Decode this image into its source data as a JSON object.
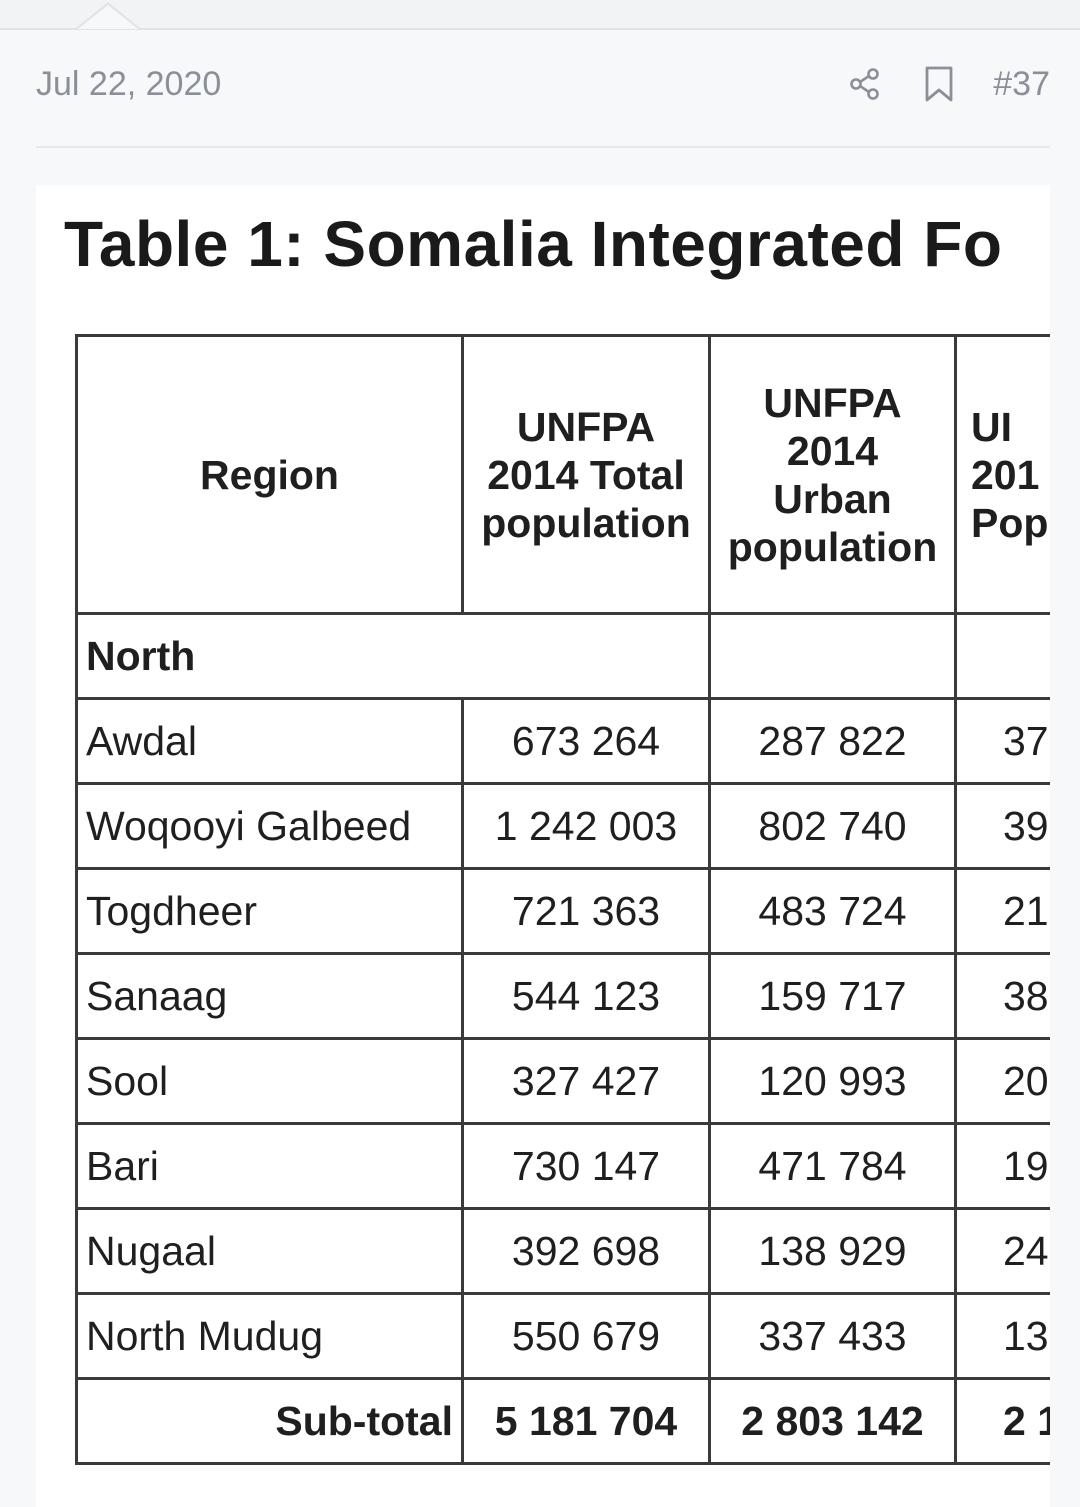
{
  "post": {
    "date": "Jul 22, 2020",
    "number": "#37"
  },
  "icons": {
    "share": "share-icon",
    "bookmark": "bookmark-icon"
  },
  "table": {
    "title": "Table 1: Somalia Integrated Fo",
    "headers": {
      "region": "Region",
      "total_line1": "UNFPA",
      "total_line2": "2014 Total",
      "total_line3": "population",
      "urban_line1": "UNFPA",
      "urban_line2": "2014",
      "urban_line3": "Urban",
      "urban_line4": "population",
      "col4_line1": "UI",
      "col4_line2": "201",
      "col4_line3": "Pop"
    },
    "section": "North",
    "rows": [
      {
        "region": "Awdal",
        "total": "673 264",
        "urban": "287 822",
        "col4": "37"
      },
      {
        "region": "Woqooyi Galbeed",
        "total": "1 242 003",
        "urban": "802 740",
        "col4": "39"
      },
      {
        "region": "Togdheer",
        "total": "721 363",
        "urban": "483 724",
        "col4": "21"
      },
      {
        "region": "Sanaag",
        "total": "544 123",
        "urban": "159 717",
        "col4": "38"
      },
      {
        "region": "Sool",
        "total": "327 427",
        "urban": "120 993",
        "col4": "20"
      },
      {
        "region": "Bari",
        "total": "730 147",
        "urban": "471 784",
        "col4": "19"
      },
      {
        "region": "Nugaal",
        "total": "392 698",
        "urban": "138 929",
        "col4": "24"
      },
      {
        "region": "North Mudug",
        "total": "550 679",
        "urban": "337 433",
        "col4": "13"
      }
    ],
    "subtotal": {
      "label": "Sub-total",
      "total": "5 181 704",
      "urban": "2 803 142",
      "col4": "2 1"
    }
  }
}
